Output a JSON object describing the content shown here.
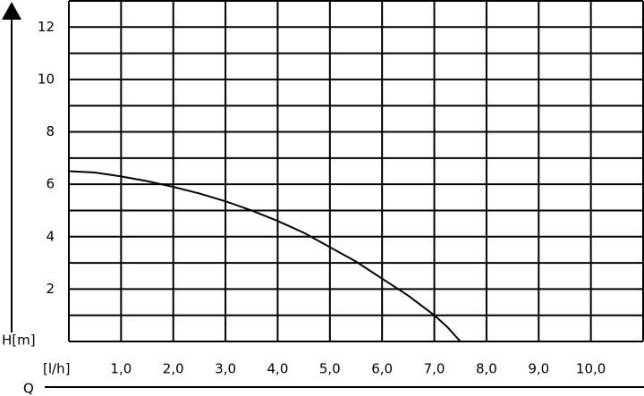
{
  "chart_data": {
    "type": "line",
    "x": [
      0,
      0.5,
      1,
      1.5,
      2,
      2.5,
      3,
      3.5,
      4,
      4.5,
      5,
      5.5,
      6,
      6.5,
      7,
      7.25,
      7.5
    ],
    "series": [
      {
        "name": "H",
        "color": "#000000",
        "values": [
          6.5,
          6.45,
          6.3,
          6.12,
          5.9,
          5.65,
          5.35,
          5.0,
          4.6,
          4.15,
          3.6,
          3.05,
          2.4,
          1.75,
          1.0,
          0.55,
          0
        ]
      }
    ],
    "xlim": [
      0,
      11
    ],
    "ylim": [
      0,
      13
    ],
    "xticks": [
      {
        "value": 1,
        "label": "1,0"
      },
      {
        "value": 2,
        "label": "2,0"
      },
      {
        "value": 3,
        "label": "3,0"
      },
      {
        "value": 4,
        "label": "4,0"
      },
      {
        "value": 5,
        "label": "5,0"
      },
      {
        "value": 6,
        "label": "6,0"
      },
      {
        "value": 7,
        "label": "7,0"
      },
      {
        "value": 8,
        "label": "8,0"
      },
      {
        "value": 9,
        "label": "9,0"
      },
      {
        "value": 10,
        "label": "10,0"
      }
    ],
    "yticks": [
      2,
      4,
      6,
      8,
      10,
      12
    ],
    "minor_xticks": [
      0,
      11
    ],
    "minor_yticks": [
      1,
      3,
      5,
      7,
      9,
      11,
      13
    ],
    "grid": true,
    "x_unit": "[l/h]",
    "x_label": "Q",
    "y_label": "H[m]"
  }
}
